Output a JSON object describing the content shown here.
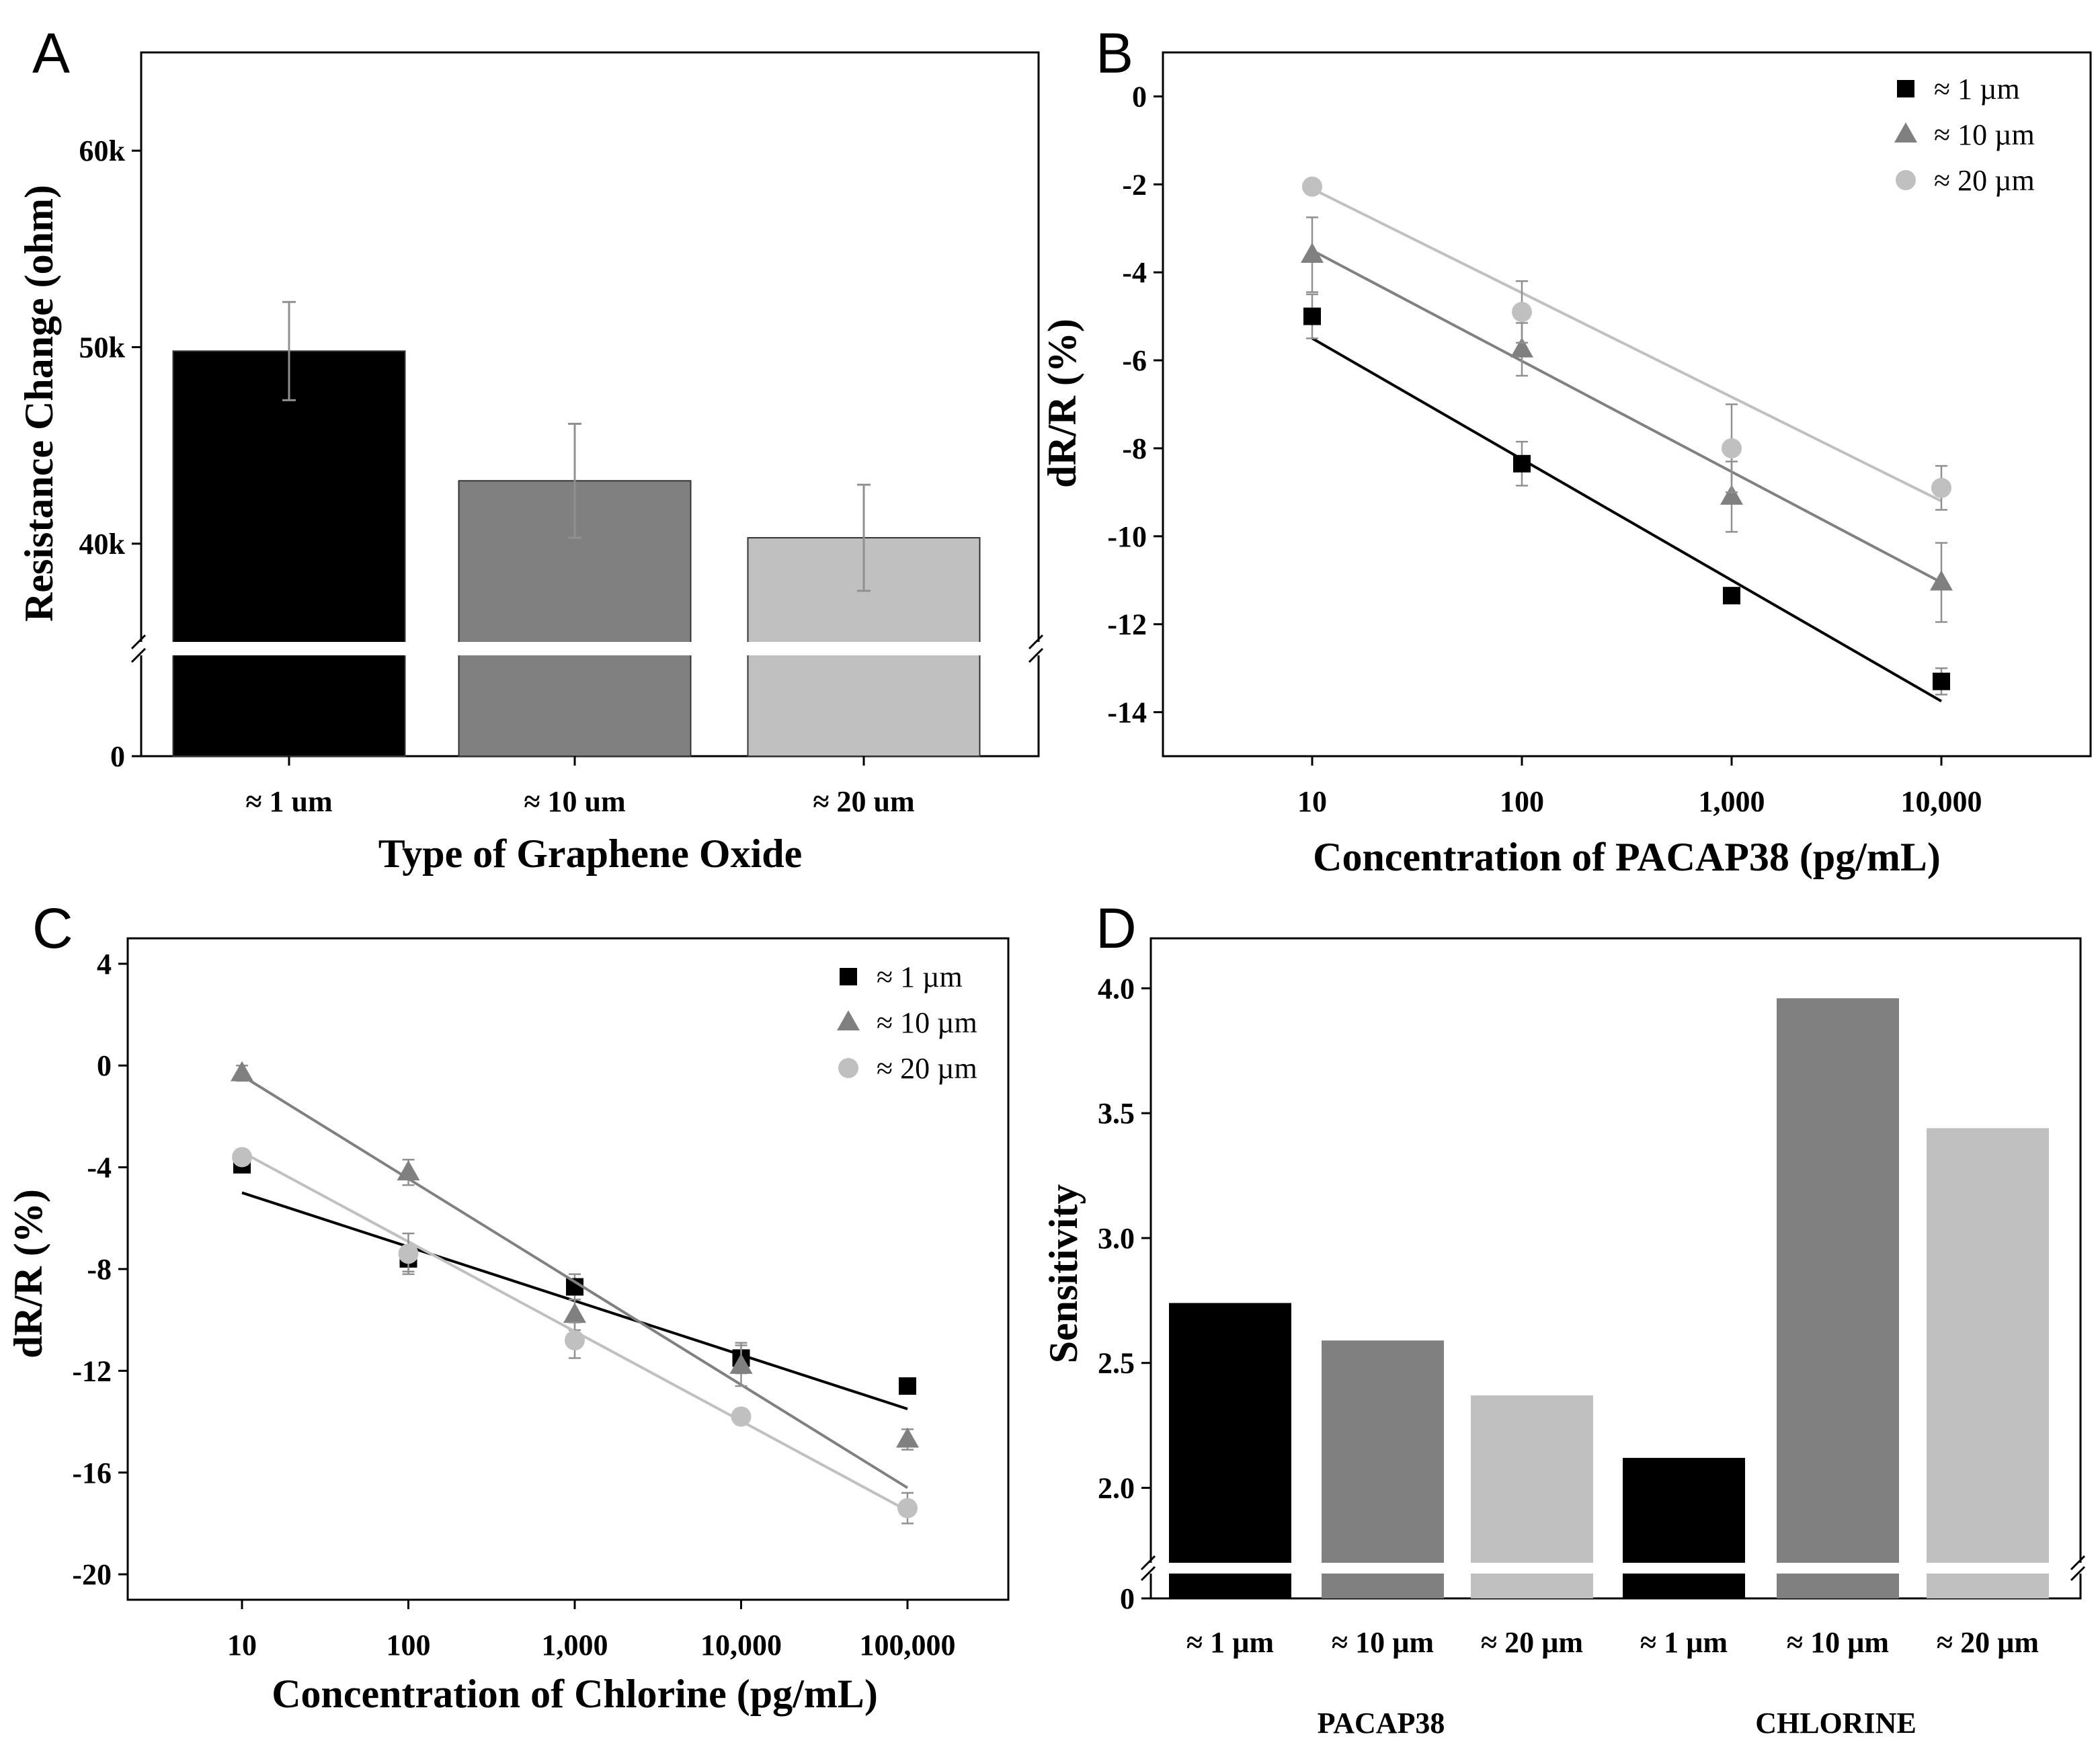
{
  "figure": {
    "panels": [
      "A",
      "B",
      "C",
      "D"
    ]
  },
  "colors": {
    "series_1um": "#000000",
    "series_10um": "#808080",
    "series_20um": "#c0c0c0",
    "axis": "#000000",
    "errorbar": "#909090"
  },
  "chart_data": [
    {
      "panel": "A",
      "type": "bar",
      "xlabel": "Type of Graphene Oxide",
      "ylabel": "Resistance Change (ohm)",
      "categories": [
        "≈ 1 um",
        "≈ 10 um",
        "≈ 20 um"
      ],
      "values": [
        49800,
        43200,
        40300
      ],
      "errors": [
        2500,
        2900,
        2700
      ],
      "colors": [
        "#000000",
        "#808080",
        "#c0c0c0"
      ],
      "y_ticks": [
        {
          "value": 60000,
          "label": "60k"
        },
        {
          "value": 50000,
          "label": "50k"
        },
        {
          "value": 40000,
          "label": "40k"
        },
        {
          "value": 0,
          "label": "0"
        }
      ],
      "axis_break": true,
      "ylim": [
        35000,
        65000
      ]
    },
    {
      "panel": "B",
      "type": "scatter",
      "xlabel": "Concentration of PACAP38 (pg/mL)",
      "ylabel": "dR/R (%)",
      "x_scale": "log",
      "x": [
        10,
        100,
        1000,
        10000
      ],
      "x_tick_labels": [
        "10",
        "100",
        "1,000",
        "10,000"
      ],
      "y_ticks": [
        0,
        -2,
        -4,
        -6,
        -8,
        -10,
        -12,
        -14
      ],
      "ylim": [
        -15,
        1
      ],
      "legend": [
        "≈ 1 µm",
        "≈ 10 µm",
        "≈ 20 µm"
      ],
      "series": [
        {
          "name": "≈ 1 µm",
          "marker": "square",
          "color": "#000000",
          "values": [
            -5.0,
            -8.35,
            -11.35,
            -13.3
          ],
          "errors": [
            0.5,
            0.5,
            0.15,
            0.3
          ],
          "fit": [
            -5.5,
            -13.75
          ]
        },
        {
          "name": "≈ 10 µm",
          "marker": "triangle",
          "color": "#808080",
          "values": [
            -3.6,
            -5.75,
            -9.1,
            -11.05
          ],
          "errors": [
            0.85,
            0.6,
            0.8,
            0.9
          ],
          "fit": [
            -3.5,
            -11.05
          ]
        },
        {
          "name": "≈ 20 µm",
          "marker": "circle",
          "color": "#c0c0c0",
          "values": [
            -2.05,
            -4.9,
            -8.0,
            -8.9
          ],
          "errors": [
            0.15,
            0.7,
            1.0,
            0.5
          ],
          "fit": [
            -2.1,
            -9.2
          ]
        }
      ]
    },
    {
      "panel": "C",
      "type": "scatter",
      "xlabel": "Concentration of Chlorine (pg/mL)",
      "ylabel": "dR/R (%)",
      "x_scale": "log",
      "x": [
        10,
        100,
        1000,
        10000,
        100000
      ],
      "x_tick_labels": [
        "10",
        "100",
        "1,000",
        "10,000",
        "100,000"
      ],
      "y_ticks": [
        4,
        0,
        -4,
        -8,
        -12,
        -16,
        -20
      ],
      "ylim": [
        -21,
        5
      ],
      "legend": [
        "≈ 1 µm",
        "≈ 10 µm",
        "≈ 20 µm"
      ],
      "series": [
        {
          "name": "≈ 1 µm",
          "marker": "square",
          "color": "#000000",
          "values": [
            -3.9,
            -7.6,
            -8.7,
            -11.5,
            -12.6
          ],
          "errors": [
            0.3,
            0.5,
            0.5,
            0.6,
            0.3
          ],
          "fit": [
            -5.0,
            -13.5
          ]
        },
        {
          "name": "≈ 10 µm",
          "marker": "triangle",
          "color": "#808080",
          "values": [
            -0.3,
            -4.2,
            -9.8,
            -11.8,
            -14.7
          ],
          "errors": [
            0.3,
            0.5,
            0.6,
            0.8,
            0.4
          ],
          "fit": [
            -0.4,
            -16.6
          ]
        },
        {
          "name": "≈ 20 µm",
          "marker": "circle",
          "color": "#c0c0c0",
          "values": [
            -3.6,
            -7.4,
            -10.8,
            -13.8,
            -17.4
          ],
          "errors": [
            0.3,
            0.8,
            0.7,
            0.3,
            0.6
          ],
          "fit": [
            -3.4,
            -17.5
          ]
        }
      ]
    },
    {
      "panel": "D",
      "type": "bar",
      "ylabel": "Sensitivity",
      "categories": [
        "≈ 1 µm",
        "≈ 10 µm",
        "≈ 20 µm",
        "≈ 1 µm",
        "≈ 10 µm",
        "≈ 20 µm"
      ],
      "groups": [
        "PACAP38",
        "CHLORINE"
      ],
      "values": [
        2.74,
        2.59,
        2.37,
        2.12,
        3.96,
        3.44
      ],
      "colors": [
        "#000000",
        "#808080",
        "#c0c0c0",
        "#000000",
        "#808080",
        "#c0c0c0"
      ],
      "y_ticks": [
        {
          "value": 4.0,
          "label": "4.0"
        },
        {
          "value": 3.5,
          "label": "3.5"
        },
        {
          "value": 3.0,
          "label": "3.0"
        },
        {
          "value": 2.5,
          "label": "2.5"
        },
        {
          "value": 2.0,
          "label": "2.0"
        },
        {
          "value": 0,
          "label": "0"
        }
      ],
      "axis_break": true,
      "ylim": [
        1.7,
        4.2
      ]
    }
  ]
}
